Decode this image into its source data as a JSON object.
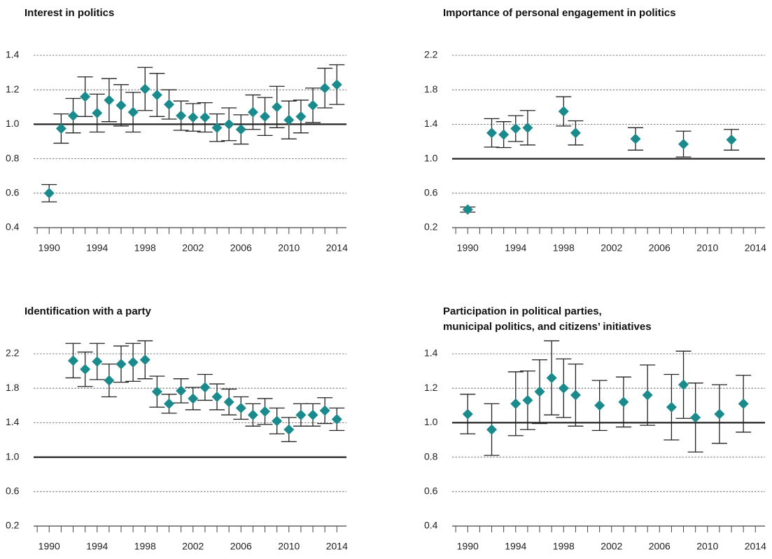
{
  "chart_data": [
    {
      "type": "errorbar",
      "title": "Interest in politics",
      "color": "#1b8a8c",
      "hline": 1,
      "grid": true,
      "xlim": [
        1988.7,
        2014.8
      ],
      "xticks": [
        1990,
        1994,
        1998,
        2002,
        2006,
        2010,
        2014
      ],
      "minor_xtick_step": 1,
      "ylim": [
        0.4,
        1.4
      ],
      "yticks": [
        0.4,
        0.6,
        0.8,
        {
          "value": 1,
          "label": "1.0"
        },
        1.2,
        1.4
      ],
      "x": [
        1990,
        1991,
        1992,
        1993,
        1994,
        1995,
        1996,
        1997,
        1998,
        1999,
        2000,
        2001,
        2002,
        2003,
        2004,
        2005,
        2006,
        2007,
        2008,
        2009,
        2010,
        2011,
        2012,
        2013,
        2014
      ],
      "values": [
        0.6,
        0.975,
        1.05,
        1.16,
        1.065,
        1.14,
        1.11,
        1.07,
        1.205,
        1.17,
        1.115,
        1.05,
        1.04,
        1.04,
        0.98,
        1.0,
        0.97,
        1.07,
        1.045,
        1.1,
        1.025,
        1.045,
        1.11,
        1.21,
        1.23
      ],
      "errors": [
        0.05,
        0.085,
        0.1,
        0.115,
        0.11,
        0.125,
        0.12,
        0.115,
        0.125,
        0.125,
        0.085,
        0.085,
        0.08,
        0.085,
        0.08,
        0.095,
        0.085,
        0.1,
        0.11,
        0.12,
        0.11,
        0.095,
        0.1,
        0.115,
        0.115
      ]
    },
    {
      "type": "errorbar",
      "title": "Importance of personal engagement in politics",
      "color": "#1b8a8c",
      "hline": 1,
      "grid": true,
      "xlim": [
        1988.7,
        2014.8
      ],
      "xticks": [
        1990,
        1994,
        1998,
        2002,
        2006,
        2010,
        2014
      ],
      "minor_xtick_step": 1,
      "ylim": [
        0.2,
        2.2
      ],
      "yticks": [
        0.2,
        0.6,
        {
          "value": 1,
          "label": "1.0"
        },
        1.4,
        1.8,
        2.2
      ],
      "x": [
        1990,
        1992,
        1993,
        1994,
        1995,
        1998,
        1999,
        2004,
        2008,
        2012
      ],
      "values": [
        0.41,
        1.3,
        1.28,
        1.35,
        1.36,
        1.55,
        1.3,
        1.23,
        1.17,
        1.22
      ],
      "errors": [
        0.03,
        0.165,
        0.15,
        0.15,
        0.2,
        0.17,
        0.14,
        0.13,
        0.15,
        0.12
      ]
    },
    {
      "type": "errorbar",
      "title": "Identification with a party",
      "color": "#1b8a8c",
      "hline": 1,
      "grid": true,
      "xlim": [
        1988.7,
        2014.8
      ],
      "xticks": [
        1990,
        1994,
        1998,
        2002,
        2006,
        2010,
        2014
      ],
      "minor_xtick_step": 1,
      "ylim": [
        0.2,
        2.2
      ],
      "yticks": [
        0.2,
        0.6,
        {
          "value": 1,
          "label": "1.0"
        },
        1.4,
        1.8,
        2.2
      ],
      "x": [
        1992,
        1993,
        1994,
        1995,
        1996,
        1997,
        1998,
        1999,
        2000,
        2001,
        2002,
        2003,
        2004,
        2005,
        2006,
        2007,
        2008,
        2009,
        2010,
        2011,
        2012,
        2013,
        2014
      ],
      "values": [
        2.12,
        2.02,
        2.11,
        1.89,
        2.08,
        2.1,
        2.13,
        1.76,
        1.62,
        1.77,
        1.68,
        1.81,
        1.7,
        1.64,
        1.57,
        1.49,
        1.53,
        1.42,
        1.32,
        1.49,
        1.49,
        1.54,
        1.44
      ],
      "errors": [
        0.2,
        0.2,
        0.21,
        0.19,
        0.21,
        0.22,
        0.22,
        0.18,
        0.11,
        0.14,
        0.13,
        0.15,
        0.15,
        0.15,
        0.13,
        0.13,
        0.15,
        0.15,
        0.14,
        0.13,
        0.13,
        0.15,
        0.13
      ]
    },
    {
      "type": "errorbar",
      "title": [
        "Participation in political parties,",
        "municipal politics, and citizens’ initiatives"
      ],
      "color": "#1b8a8c",
      "hline": 1,
      "grid": true,
      "xlim": [
        1988.7,
        2014.8
      ],
      "xticks": [
        1990,
        1994,
        1998,
        2002,
        2006,
        2010,
        2014
      ],
      "minor_xtick_step": 1,
      "ylim": [
        0.4,
        1.4
      ],
      "yticks": [
        0.4,
        0.6,
        0.8,
        {
          "value": 1,
          "label": "1.0"
        },
        1.2,
        1.4
      ],
      "x": [
        1990,
        1992,
        1994,
        1995,
        1996,
        1997,
        1998,
        1999,
        2001,
        2003,
        2005,
        2007,
        2008,
        2009,
        2011,
        2013
      ],
      "values": [
        1.05,
        0.96,
        1.11,
        1.13,
        1.18,
        1.26,
        1.2,
        1.16,
        1.1,
        1.12,
        1.16,
        1.09,
        1.22,
        1.03,
        1.05,
        1.11
      ],
      "errors": [
        0.115,
        0.15,
        0.185,
        0.17,
        0.185,
        0.215,
        0.17,
        0.18,
        0.145,
        0.145,
        0.175,
        0.19,
        0.195,
        0.2,
        0.17,
        0.165
      ]
    }
  ]
}
